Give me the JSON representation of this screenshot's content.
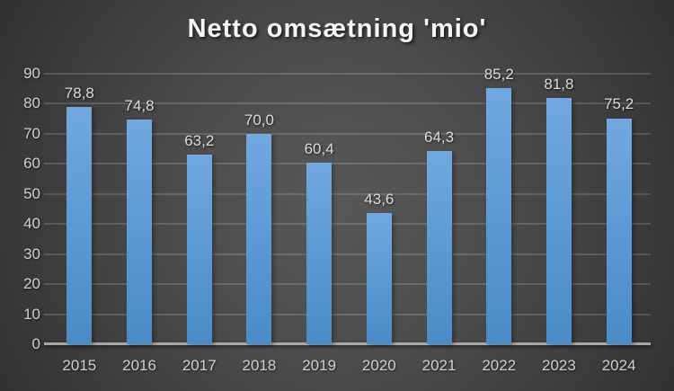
{
  "chart_data": {
    "type": "bar",
    "title": "Netto omsætning 'mio'",
    "categories": [
      "2015",
      "2016",
      "2017",
      "2018",
      "2019",
      "2020",
      "2021",
      "2022",
      "2023",
      "2024"
    ],
    "values": [
      78.8,
      74.8,
      63.2,
      70.0,
      60.4,
      43.6,
      64.3,
      85.2,
      81.8,
      75.2
    ],
    "value_labels": [
      "78,8",
      "74,8",
      "63,2",
      "70,0",
      "60,4",
      "43,6",
      "64,3",
      "85,2",
      "81,8",
      "75,2"
    ],
    "xlabel": "",
    "ylabel": "",
    "ylim": [
      0,
      90
    ],
    "ytick_step": 10,
    "ytick_labels": [
      "0",
      "10",
      "20",
      "30",
      "40",
      "50",
      "60",
      "70",
      "80",
      "90"
    ],
    "grid": "horizontal",
    "legend": "none",
    "colors": {
      "bar_top": "#72a8df",
      "bar_mid": "#5a98d4",
      "bar_bottom": "#4a8bc8",
      "gridline": "rgba(255,255,255,0.15)",
      "axis_line": "#a8a8a8",
      "label_text": "#dcdcdc",
      "tick_text": "#cfcfcf",
      "title_text": "#f5f5f5"
    }
  }
}
